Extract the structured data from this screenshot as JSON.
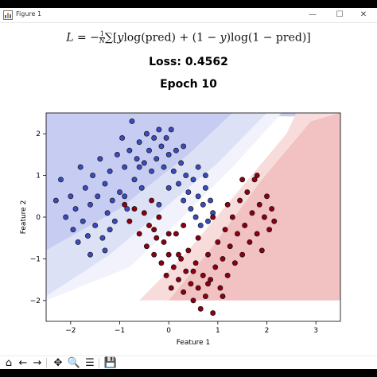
{
  "window": {
    "title": "Figure 1",
    "minimize_glyph": "—",
    "maximize_glyph": "☐",
    "close_glyph": "✕",
    "icons": [
      "figure-app-icon",
      "minimize-icon",
      "maximize-icon",
      "close-icon"
    ]
  },
  "figure": {
    "equation": {
      "lhs": "L = −",
      "frac_num": "1",
      "frac_den": "N",
      "sum": "∑[",
      "body_1": "y",
      "log1": "log",
      "pred1": "(pred) + (1 − ",
      "body_2": "y",
      "close_2": ")",
      "log2": "log",
      "pred2": "(1 − pred)]"
    },
    "loss_label": "Loss: 0.4562",
    "epoch_label": "Epoch 10"
  },
  "chart_data": {
    "type": "scatter",
    "xlabel": "Feature 1",
    "ylabel": "Feature 2",
    "xlim": [
      -2.5,
      3.5
    ],
    "ylim": [
      -2.5,
      2.5
    ],
    "xticks": [
      "−2",
      "−1",
      "0",
      "1",
      "2",
      "3"
    ],
    "xtick_values": [
      -2,
      -1,
      0,
      1,
      2,
      3
    ],
    "yticks": [
      "−2",
      "−1",
      "0",
      "1",
      "2"
    ],
    "ytick_values": [
      -2,
      -1,
      0,
      1,
      2
    ],
    "grid": false,
    "background": "decision-boundary contour (blue = class 0, red = class 1)",
    "colors": {
      "class0": "#3b4cc0",
      "class1": "#8b0012",
      "bg_blue": "#c7cdf2",
      "bg_red": "#f2c1c1"
    },
    "series": [
      {
        "points": [
          [
            -2.3,
            0.4
          ],
          [
            -2.2,
            0.9
          ],
          [
            -2.1,
            0.0
          ],
          [
            -2.0,
            0.5
          ],
          [
            -1.95,
            -0.3
          ],
          [
            -1.9,
            0.2
          ],
          [
            -1.85,
            -0.6
          ],
          [
            -1.8,
            1.2
          ],
          [
            -1.75,
            -0.1
          ],
          [
            -1.7,
            0.7
          ],
          [
            -1.65,
            -0.45
          ],
          [
            -1.6,
            0.3
          ],
          [
            -1.55,
            1.0
          ],
          [
            -1.5,
            -0.2
          ],
          [
            -1.45,
            0.5
          ],
          [
            -1.4,
            1.4
          ],
          [
            -1.35,
            -0.5
          ],
          [
            -1.3,
            0.8
          ],
          [
            -1.25,
            0.1
          ],
          [
            -1.2,
            1.1
          ],
          [
            -1.15,
            0.4
          ],
          [
            -1.1,
            -0.1
          ],
          [
            -1.05,
            1.5
          ],
          [
            -1.0,
            0.6
          ],
          [
            -0.95,
            1.9
          ],
          [
            -0.9,
            1.2
          ],
          [
            -0.85,
            0.2
          ],
          [
            -0.8,
            1.6
          ],
          [
            -0.75,
            2.3
          ],
          [
            -0.7,
            0.9
          ],
          [
            -0.65,
            1.4
          ],
          [
            -0.6,
            1.8
          ],
          [
            -0.55,
            0.7
          ],
          [
            -0.5,
            1.3
          ],
          [
            -0.45,
            2.0
          ],
          [
            -0.4,
            1.6
          ],
          [
            -0.35,
            1.1
          ],
          [
            -0.3,
            1.9
          ],
          [
            -0.25,
            1.4
          ],
          [
            -0.2,
            2.1
          ],
          [
            -0.15,
            1.7
          ],
          [
            -0.1,
            1.2
          ],
          [
            -0.05,
            1.9
          ],
          [
            0.0,
            1.5
          ],
          [
            0.05,
            2.1
          ],
          [
            0.1,
            1.1
          ],
          [
            0.15,
            1.6
          ],
          [
            0.2,
            0.8
          ],
          [
            0.25,
            1.3
          ],
          [
            0.3,
            0.4
          ],
          [
            0.35,
            1.0
          ],
          [
            0.4,
            0.6
          ],
          [
            0.45,
            0.2
          ],
          [
            0.5,
            0.9
          ],
          [
            0.55,
            0.0
          ],
          [
            0.6,
            0.5
          ],
          [
            0.65,
            -0.2
          ],
          [
            0.7,
            0.3
          ],
          [
            0.75,
            0.7
          ],
          [
            0.8,
            -0.1
          ],
          [
            0.85,
            0.4
          ],
          [
            0.9,
            0.1
          ],
          [
            0.0,
            0.7
          ],
          [
            -0.2,
            0.3
          ],
          [
            -1.3,
            -0.8
          ],
          [
            -1.6,
            -0.9
          ],
          [
            -1.2,
            -0.3
          ],
          [
            -0.9,
            0.5
          ],
          [
            -0.6,
            1.2
          ],
          [
            0.3,
            1.7
          ],
          [
            0.6,
            1.2
          ],
          [
            0.75,
            1.0
          ]
        ]
      },
      {
        "points": [
          [
            -0.9,
            0.3
          ],
          [
            -0.8,
            -0.1
          ],
          [
            -0.7,
            0.2
          ],
          [
            -0.6,
            -0.4
          ],
          [
            -0.5,
            0.1
          ],
          [
            -0.45,
            -0.7
          ],
          [
            -0.4,
            -0.2
          ],
          [
            -0.35,
            0.4
          ],
          [
            -0.3,
            -0.9
          ],
          [
            -0.25,
            -0.5
          ],
          [
            -0.2,
            0.0
          ],
          [
            -0.15,
            -1.1
          ],
          [
            -0.1,
            -0.6
          ],
          [
            -0.05,
            -1.4
          ],
          [
            0.0,
            -0.9
          ],
          [
            0.05,
            -1.7
          ],
          [
            0.1,
            -1.2
          ],
          [
            0.15,
            -0.4
          ],
          [
            0.2,
            -1.5
          ],
          [
            0.25,
            -1.0
          ],
          [
            0.3,
            -1.8
          ],
          [
            0.35,
            -1.3
          ],
          [
            0.4,
            -0.8
          ],
          [
            0.45,
            -1.6
          ],
          [
            0.5,
            -2.0
          ],
          [
            0.55,
            -1.1
          ],
          [
            0.6,
            -1.7
          ],
          [
            0.65,
            -2.2
          ],
          [
            0.7,
            -1.4
          ],
          [
            0.75,
            -1.9
          ],
          [
            0.8,
            -0.9
          ],
          [
            0.85,
            -1.5
          ],
          [
            0.9,
            -2.3
          ],
          [
            0.95,
            -1.2
          ],
          [
            1.0,
            -0.6
          ],
          [
            1.05,
            -1.7
          ],
          [
            1.1,
            -1.0
          ],
          [
            1.15,
            -0.3
          ],
          [
            1.2,
            -1.4
          ],
          [
            1.25,
            -0.7
          ],
          [
            1.3,
            0.0
          ],
          [
            1.35,
            -1.1
          ],
          [
            1.4,
            -0.4
          ],
          [
            1.45,
            0.4
          ],
          [
            1.5,
            -0.9
          ],
          [
            1.55,
            -0.2
          ],
          [
            1.6,
            0.6
          ],
          [
            1.65,
            -0.6
          ],
          [
            1.7,
            0.1
          ],
          [
            1.75,
            0.9
          ],
          [
            1.8,
            -0.4
          ],
          [
            1.85,
            0.3
          ],
          [
            1.9,
            -0.8
          ],
          [
            1.95,
            0.0
          ],
          [
            2.0,
            0.5
          ],
          [
            2.05,
            -0.3
          ],
          [
            2.1,
            0.2
          ],
          [
            2.15,
            -0.1
          ],
          [
            0.3,
            -0.2
          ],
          [
            0.6,
            -0.5
          ],
          [
            0.9,
            0.0
          ],
          [
            1.2,
            0.3
          ],
          [
            1.5,
            0.9
          ],
          [
            1.8,
            1.0
          ],
          [
            0.2,
            -0.9
          ],
          [
            0.5,
            -1.3
          ],
          [
            0.8,
            -1.6
          ],
          [
            1.1,
            -1.9
          ],
          [
            0.0,
            -0.4
          ],
          [
            -0.3,
            -0.3
          ]
        ]
      }
    ]
  },
  "toolbar": {
    "buttons": [
      {
        "name": "home-button",
        "glyph": "⌂"
      },
      {
        "name": "back-button",
        "glyph": "←"
      },
      {
        "name": "forward-button",
        "glyph": "→"
      },
      {
        "name": "pan-button",
        "glyph": "✥"
      },
      {
        "name": "zoom-button",
        "glyph": "🔍"
      },
      {
        "name": "configure-subplots-button",
        "glyph": "☰"
      },
      {
        "name": "save-button",
        "glyph": "💾"
      }
    ]
  }
}
